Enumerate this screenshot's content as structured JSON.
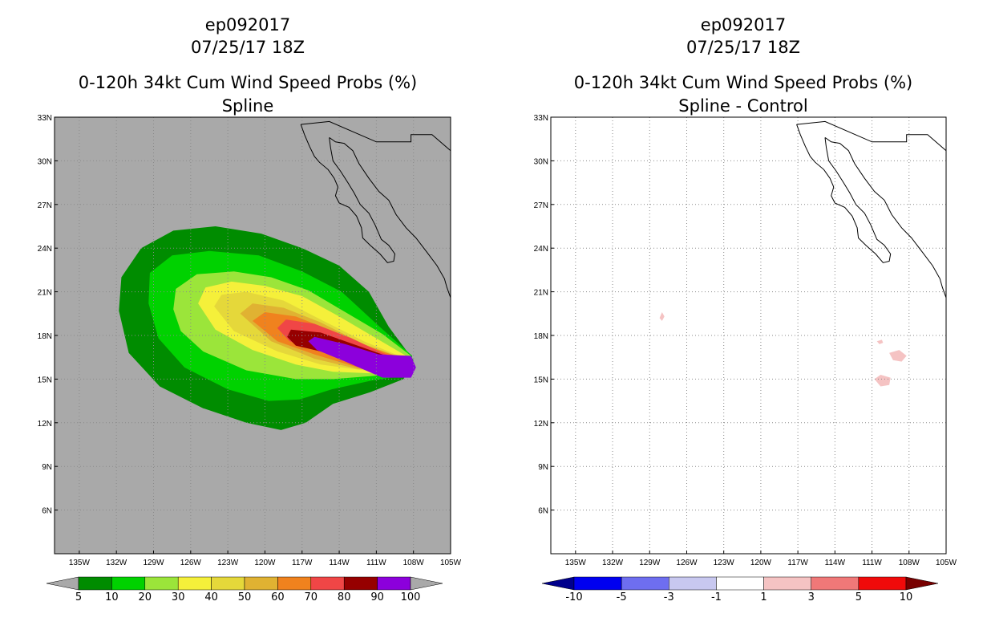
{
  "panels": [
    {
      "storm_id": "ep092017",
      "datetime": "07/25/17 18Z",
      "product": "0-120h 34kt Cum Wind Speed Probs (%)",
      "subtitle": "Spline",
      "background_color": "#a9a9a9",
      "colorbar": {
        "labels": [
          "5",
          "10",
          "20",
          "30",
          "40",
          "50",
          "60",
          "70",
          "80",
          "90",
          "100"
        ],
        "colors": [
          "#008c00",
          "#00d200",
          "#9be53a",
          "#f5f03a",
          "#e5d83a",
          "#e0b232",
          "#f0821e",
          "#f04646",
          "#960000",
          "#8c00dc"
        ],
        "end_color_low": "#a9a9a9",
        "end_color_high": "#a9a9a9"
      }
    },
    {
      "storm_id": "ep092017",
      "datetime": "07/25/17 18Z",
      "product": "0-120h 34kt Cum Wind Speed Probs (%)",
      "subtitle": "Spline - Control",
      "background_color": "#ffffff",
      "colorbar": {
        "labels": [
          "-10",
          "-5",
          "-3",
          "-1",
          "1",
          "3",
          "5",
          "10"
        ],
        "colors": [
          "#0000f0",
          "#6e6ef0",
          "#c8c8f0",
          "#ffffff",
          "#f5c3c3",
          "#f07878",
          "#f00a0a"
        ],
        "end_color_low": "#00008c",
        "end_color_high": "#780000"
      }
    }
  ],
  "chart_data": [
    {
      "type": "heatmap",
      "title": "ep092017 07/25/17 18Z 0-120h 34kt Cum Wind Speed Probs (%) Spline",
      "x_range": [
        -137,
        -105
      ],
      "y_range": [
        3,
        33
      ],
      "xticks": [
        "135W",
        "132W",
        "129W",
        "126W",
        "123W",
        "120W",
        "117W",
        "114W",
        "111W",
        "108W",
        "105W"
      ],
      "yticks": [
        "6N",
        "9N",
        "12N",
        "15N",
        "18N",
        "21N",
        "24N",
        "27N",
        "30N",
        "33N"
      ],
      "contour_levels": [
        5,
        10,
        20,
        30,
        40,
        50,
        60,
        70,
        80,
        90,
        100
      ],
      "contours": [
        {
          "level": 5,
          "color": "#008c00",
          "polygon": [
            [
              -131.8,
              19.7
            ],
            [
              -131.6,
              22.0
            ],
            [
              -130.0,
              24.0
            ],
            [
              -127.4,
              25.2
            ],
            [
              -124.0,
              25.5
            ],
            [
              -120.3,
              25.0
            ],
            [
              -117.0,
              24.0
            ],
            [
              -114.0,
              22.8
            ],
            [
              -111.6,
              21.0
            ],
            [
              -110.0,
              18.6
            ],
            [
              -108.0,
              16.3
            ],
            [
              -108.8,
              15.0
            ],
            [
              -111.5,
              14.1
            ],
            [
              -114.5,
              13.3
            ],
            [
              -116.7,
              12.0
            ],
            [
              -118.7,
              11.5
            ],
            [
              -121.5,
              12.0
            ],
            [
              -125.0,
              13.0
            ],
            [
              -128.5,
              14.5
            ],
            [
              -131.0,
              16.8
            ]
          ]
        },
        {
          "level": 10,
          "color": "#00d200",
          "polygon": [
            [
              -129.4,
              20.2
            ],
            [
              -129.3,
              22.3
            ],
            [
              -127.5,
              23.5
            ],
            [
              -124.5,
              23.8
            ],
            [
              -120.5,
              23.5
            ],
            [
              -117.0,
              22.4
            ],
            [
              -113.8,
              21.0
            ],
            [
              -111.0,
              18.8
            ],
            [
              -108.1,
              16.6
            ],
            [
              -108.4,
              15.3
            ],
            [
              -111.4,
              14.9
            ],
            [
              -114.6,
              14.3
            ],
            [
              -117.2,
              13.6
            ],
            [
              -119.7,
              13.5
            ],
            [
              -123.0,
              14.3
            ],
            [
              -126.5,
              15.8
            ],
            [
              -128.6,
              17.8
            ]
          ]
        },
        {
          "level": 20,
          "color": "#9be53a",
          "polygon": [
            [
              -127.4,
              19.8
            ],
            [
              -127.2,
              21.2
            ],
            [
              -125.5,
              22.2
            ],
            [
              -122.5,
              22.4
            ],
            [
              -119.5,
              22.0
            ],
            [
              -116.5,
              21.1
            ],
            [
              -113.5,
              19.6
            ],
            [
              -110.5,
              18.1
            ],
            [
              -108.2,
              16.6
            ],
            [
              -108.5,
              15.4
            ],
            [
              -111.5,
              15.2
            ],
            [
              -114.5,
              15.0
            ],
            [
              -117.5,
              15.0
            ],
            [
              -121.5,
              15.6
            ],
            [
              -125.0,
              16.9
            ],
            [
              -126.8,
              18.3
            ]
          ]
        },
        {
          "level": 30,
          "color": "#f5f03a",
          "polygon": [
            [
              -125.4,
              20.2
            ],
            [
              -124.8,
              21.3
            ],
            [
              -122.7,
              21.7
            ],
            [
              -120.0,
              21.4
            ],
            [
              -117.0,
              20.7
            ],
            [
              -114.0,
              19.3
            ],
            [
              -111.0,
              17.8
            ],
            [
              -108.4,
              16.5
            ],
            [
              -108.6,
              15.5
            ],
            [
              -111.5,
              15.4
            ],
            [
              -114.5,
              15.5
            ],
            [
              -117.5,
              16.0
            ],
            [
              -121.0,
              17.0
            ],
            [
              -124.0,
              18.4
            ]
          ]
        },
        {
          "level": 40,
          "color": "#e5d83a",
          "polygon": [
            [
              -124.1,
              20.0
            ],
            [
              -123.5,
              20.8
            ],
            [
              -121.5,
              21.0
            ],
            [
              -118.5,
              20.4
            ],
            [
              -115.5,
              19.1
            ],
            [
              -112.0,
              17.6
            ],
            [
              -108.6,
              16.4
            ],
            [
              -108.8,
              15.6
            ],
            [
              -112.0,
              15.6
            ],
            [
              -115.5,
              16.0
            ],
            [
              -119.0,
              16.9
            ],
            [
              -122.5,
              18.3
            ]
          ]
        },
        {
          "level": 50,
          "color": "#e0b232",
          "polygon": [
            [
              -122.0,
              19.5
            ],
            [
              -121.0,
              20.2
            ],
            [
              -118.5,
              19.9
            ],
            [
              -115.5,
              18.9
            ],
            [
              -112.0,
              17.4
            ],
            [
              -108.7,
              16.4
            ],
            [
              -109.0,
              15.6
            ],
            [
              -112.5,
              15.7
            ],
            [
              -116.0,
              16.4
            ],
            [
              -119.5,
              17.6
            ]
          ]
        },
        {
          "level": 60,
          "color": "#f0821e",
          "polygon": [
            [
              -121.0,
              19.0
            ],
            [
              -120.0,
              19.6
            ],
            [
              -117.5,
              19.3
            ],
            [
              -114.5,
              18.3
            ],
            [
              -111.5,
              17.2
            ],
            [
              -108.8,
              16.4
            ],
            [
              -109.1,
              15.7
            ],
            [
              -112.5,
              15.8
            ],
            [
              -116.0,
              16.7
            ],
            [
              -119.0,
              17.6
            ]
          ]
        },
        {
          "level": 70,
          "color": "#f04646",
          "polygon": [
            [
              -119.0,
              18.5
            ],
            [
              -118.3,
              19.1
            ],
            [
              -116.0,
              18.8
            ],
            [
              -113.0,
              17.8
            ],
            [
              -110.5,
              16.8
            ],
            [
              -108.9,
              16.3
            ],
            [
              -109.2,
              15.7
            ],
            [
              -112.0,
              15.9
            ],
            [
              -115.5,
              16.9
            ],
            [
              -118.0,
              17.6
            ]
          ]
        },
        {
          "level": 80,
          "color": "#960000",
          "polygon": [
            [
              -118.2,
              17.9
            ],
            [
              -117.9,
              18.4
            ],
            [
              -115.5,
              18.2
            ],
            [
              -112.5,
              17.3
            ],
            [
              -110.2,
              16.6
            ],
            [
              -109.0,
              16.2
            ],
            [
              -109.3,
              15.7
            ],
            [
              -112.0,
              16.0
            ],
            [
              -115.0,
              16.8
            ],
            [
              -117.5,
              17.3
            ]
          ]
        },
        {
          "level": 90,
          "color": "#8c00dc",
          "polygon": [
            [
              -116.5,
              17.6
            ],
            [
              -116.0,
              17.9
            ],
            [
              -113.5,
              17.4
            ],
            [
              -110.8,
              16.7
            ],
            [
              -108.2,
              16.6
            ],
            [
              -107.8,
              15.8
            ],
            [
              -108.2,
              15.1
            ],
            [
              -110.5,
              15.1
            ],
            [
              -113.5,
              16.2
            ],
            [
              -115.8,
              17.0
            ]
          ]
        }
      ]
    },
    {
      "type": "heatmap",
      "title": "ep092017 07/25/17 18Z 0-120h 34kt Cum Wind Speed Probs (%) Spline - Control",
      "x_range": [
        -137,
        -105
      ],
      "y_range": [
        3,
        33
      ],
      "xticks": [
        "135W",
        "132W",
        "129W",
        "126W",
        "123W",
        "120W",
        "117W",
        "114W",
        "111W",
        "108W",
        "105W"
      ],
      "yticks": [
        "6N",
        "9N",
        "12N",
        "15N",
        "18N",
        "21N",
        "24N",
        "27N",
        "30N",
        "33N"
      ],
      "contour_levels": [
        -10,
        -5,
        -3,
        -1,
        1,
        3,
        5,
        10
      ],
      "contours": [
        {
          "level": 1,
          "color": "#f5c3c3",
          "polygon": [
            [
              -128.2,
              19.2
            ],
            [
              -128.0,
              19.6
            ],
            [
              -127.8,
              19.3
            ],
            [
              -128.0,
              19.0
            ]
          ]
        },
        {
          "level": 1,
          "color": "#f5c3c3",
          "polygon": [
            [
              -109.6,
              16.8
            ],
            [
              -108.8,
              17.0
            ],
            [
              -108.2,
              16.6
            ],
            [
              -108.6,
              16.2
            ],
            [
              -109.3,
              16.3
            ]
          ]
        },
        {
          "level": 1,
          "color": "#f5c3c3",
          "polygon": [
            [
              -110.8,
              15.0
            ],
            [
              -110.3,
              15.3
            ],
            [
              -109.5,
              15.1
            ],
            [
              -109.6,
              14.6
            ],
            [
              -110.3,
              14.5
            ]
          ]
        },
        {
          "level": 1,
          "color": "#f5c3c3",
          "polygon": [
            [
              -110.6,
              17.6
            ],
            [
              -110.2,
              17.7
            ],
            [
              -110.1,
              17.5
            ],
            [
              -110.4,
              17.4
            ]
          ]
        }
      ]
    }
  ]
}
